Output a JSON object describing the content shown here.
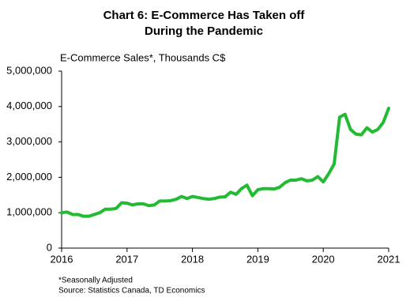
{
  "chart_data": {
    "type": "line",
    "title": [
      "Chart 6: E-Commerce Has Taken off",
      "During the Pandemic"
    ],
    "y_label": "E-Commerce Sales*, Thousands C$",
    "footnotes": [
      "*Seasonally  Adjusted",
      "Source:  Statistics Canada,  TD Economics"
    ],
    "x": [
      2016,
      2016.083,
      2016.167,
      2016.25,
      2016.333,
      2016.417,
      2016.5,
      2016.583,
      2016.667,
      2016.75,
      2016.833,
      2016.917,
      2017,
      2017.083,
      2017.167,
      2017.25,
      2017.333,
      2017.417,
      2017.5,
      2017.583,
      2017.667,
      2017.75,
      2017.833,
      2017.917,
      2018,
      2018.083,
      2018.167,
      2018.25,
      2018.333,
      2018.417,
      2018.5,
      2018.583,
      2018.667,
      2018.75,
      2018.833,
      2018.917,
      2019,
      2019.083,
      2019.167,
      2019.25,
      2019.333,
      2019.417,
      2019.5,
      2019.583,
      2019.667,
      2019.75,
      2019.833,
      2019.917,
      2020,
      2020.083,
      2020.167,
      2020.25,
      2020.333,
      2020.417,
      2020.5,
      2020.583,
      2020.667,
      2020.75,
      2020.833,
      2020.917,
      2021
    ],
    "series": [
      {
        "color": "#22bb33",
        "values": [
          1000000,
          1020000,
          950000,
          950000,
          900000,
          900000,
          950000,
          1000000,
          1100000,
          1100000,
          1120000,
          1280000,
          1270000,
          1220000,
          1250000,
          1250000,
          1200000,
          1220000,
          1330000,
          1330000,
          1340000,
          1380000,
          1460000,
          1400000,
          1460000,
          1430000,
          1400000,
          1380000,
          1400000,
          1440000,
          1450000,
          1580000,
          1520000,
          1680000,
          1780000,
          1480000,
          1650000,
          1680000,
          1680000,
          1670000,
          1720000,
          1850000,
          1920000,
          1920000,
          1960000,
          1900000,
          1920000,
          2020000,
          1870000,
          2100000,
          2380000,
          3700000,
          3780000,
          3350000,
          3220000,
          3200000,
          3400000,
          3280000,
          3350000,
          3550000,
          3950000
        ]
      }
    ],
    "xlim": [
      2016,
      2021
    ],
    "xticks": [
      2016,
      2017,
      2018,
      2019,
      2020,
      2021
    ],
    "ylim": [
      0,
      5000000
    ],
    "yticks": [
      0,
      {
        "value": 1000000,
        "label": "1,000,000"
      },
      {
        "value": 2000000,
        "label": "2,000,000"
      },
      {
        "value": 3000000,
        "label": "3,000,000"
      },
      {
        "value": 4000000,
        "label": "4,000,000"
      },
      {
        "value": 5000000,
        "label": "5,000,000"
      }
    ],
    "grid": false
  }
}
